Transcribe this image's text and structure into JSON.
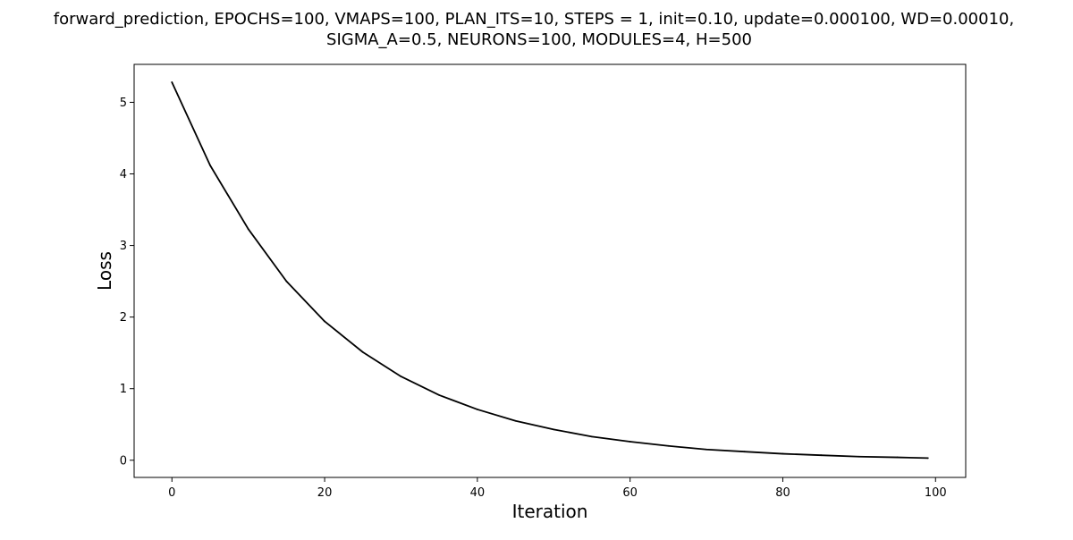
{
  "chart_data": {
    "type": "line",
    "title_lines": [
      "forward_prediction, EPOCHS=100, VMAPS=100, PLAN_ITS=10, STEPS = 1, init=0.10, update=0.000100, WD=0.00010,",
      "SIGMA_A=0.5, NEURONS=100, MODULES=4, H=500"
    ],
    "xlabel": "Iteration",
    "ylabel": "Loss",
    "xlim": [
      -4.95,
      103.95
    ],
    "ylim": [
      -0.24,
      5.53
    ],
    "xticks": [
      0,
      20,
      40,
      60,
      80,
      100
    ],
    "yticks": [
      0,
      1,
      2,
      3,
      4,
      5
    ],
    "grid": false,
    "line_color": "#000000",
    "series": [
      {
        "x": [
          0,
          5,
          10,
          15,
          20,
          25,
          30,
          35,
          40,
          45,
          50,
          55,
          60,
          65,
          70,
          75,
          80,
          85,
          90,
          95,
          99
        ],
        "values": [
          5.28,
          4.12,
          3.23,
          2.5,
          1.94,
          1.51,
          1.17,
          0.91,
          0.71,
          0.55,
          0.43,
          0.33,
          0.26,
          0.2,
          0.15,
          0.12,
          0.09,
          0.07,
          0.05,
          0.04,
          0.03
        ]
      }
    ]
  }
}
